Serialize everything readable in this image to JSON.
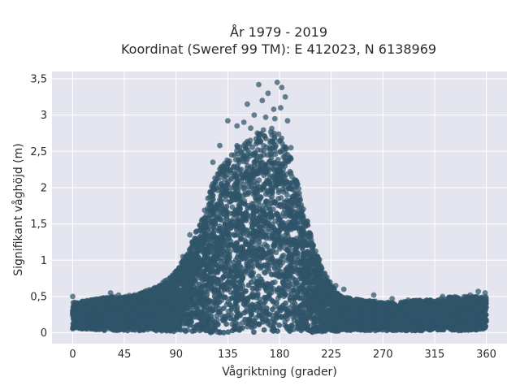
{
  "chart_data": {
    "type": "scatter",
    "title_line1": "År 1979 - 2019",
    "title_line2": "Koordinat (Sweref 99 TM): E 412023, N 6138969",
    "xlabel": "Vågriktning (grader)",
    "ylabel": "Signifikant våghöjd (m)",
    "xlim": [
      -18,
      378
    ],
    "ylim": [
      -0.15,
      3.6
    ],
    "xticks": [
      0,
      45,
      90,
      135,
      180,
      225,
      270,
      315,
      360
    ],
    "xtick_labels": [
      "0",
      "45",
      "90",
      "135",
      "180",
      "225",
      "270",
      "315",
      "360"
    ],
    "yticks": [
      0,
      0.5,
      1,
      1.5,
      2,
      2.5,
      3,
      3.5
    ],
    "ytick_labels": [
      "0",
      "0,5",
      "1",
      "1,5",
      "2",
      "2,5",
      "3",
      "3,5"
    ],
    "grid": true,
    "colors": {
      "plot_background": "#e5e5ef",
      "grid": "#ffffff",
      "marker": "#2f5468"
    },
    "envelope_note_free": true,
    "envelope": {
      "x": [
        0,
        15,
        30,
        45,
        60,
        75,
        90,
        100,
        110,
        120,
        130,
        140,
        150,
        160,
        170,
        180,
        190,
        200,
        210,
        220,
        230,
        240,
        255,
        270,
        285,
        300,
        315,
        330,
        345,
        360
      ],
      "ymax": [
        0.42,
        0.45,
        0.5,
        0.5,
        0.55,
        0.65,
        0.85,
        1.1,
        1.5,
        2.0,
        2.35,
        2.55,
        2.65,
        2.75,
        2.85,
        2.75,
        2.4,
        1.8,
        1.2,
        0.8,
        0.55,
        0.48,
        0.45,
        0.42,
        0.42,
        0.45,
        0.45,
        0.5,
        0.5,
        0.5
      ],
      "ymin": [
        0.05,
        0.05,
        0.03,
        0.03,
        0.03,
        0.02,
        0.02,
        0.02,
        0.0,
        0.0,
        0.0,
        0.0,
        0.0,
        0.0,
        0.0,
        0.0,
        0.0,
        0.0,
        0.0,
        0.02,
        0.02,
        0.03,
        0.03,
        0.03,
        0.03,
        0.03,
        0.03,
        0.03,
        0.03,
        0.05
      ]
    },
    "outliers": [
      {
        "x": 162,
        "y": 3.42
      },
      {
        "x": 178,
        "y": 3.45
      },
      {
        "x": 182,
        "y": 3.38
      },
      {
        "x": 170,
        "y": 3.3
      },
      {
        "x": 152,
        "y": 3.15
      },
      {
        "x": 165,
        "y": 3.2
      },
      {
        "x": 185,
        "y": 3.25
      },
      {
        "x": 181,
        "y": 3.1
      },
      {
        "x": 175,
        "y": 3.08
      },
      {
        "x": 158,
        "y": 3.0
      },
      {
        "x": 168,
        "y": 2.97
      },
      {
        "x": 135,
        "y": 2.92
      },
      {
        "x": 143,
        "y": 2.85
      },
      {
        "x": 149,
        "y": 2.9
      },
      {
        "x": 187,
        "y": 2.92
      },
      {
        "x": 176,
        "y": 2.95
      },
      {
        "x": 155,
        "y": 2.82
      },
      {
        "x": 190,
        "y": 2.55
      },
      {
        "x": 128,
        "y": 2.58
      },
      {
        "x": 122,
        "y": 2.35
      },
      {
        "x": 102,
        "y": 1.35
      },
      {
        "x": 107,
        "y": 1.3
      },
      {
        "x": 96,
        "y": 1.05
      },
      {
        "x": 98,
        "y": 0.95
      },
      {
        "x": 213,
        "y": 1.05
      },
      {
        "x": 224,
        "y": 0.7
      },
      {
        "x": 229,
        "y": 0.65
      },
      {
        "x": 236,
        "y": 0.6
      },
      {
        "x": 0,
        "y": 0.5
      },
      {
        "x": 33,
        "y": 0.55
      },
      {
        "x": 40,
        "y": 0.52
      },
      {
        "x": 63,
        "y": 0.57
      },
      {
        "x": 84,
        "y": 0.65
      },
      {
        "x": 88,
        "y": 0.72
      },
      {
        "x": 262,
        "y": 0.52
      },
      {
        "x": 278,
        "y": 0.47
      },
      {
        "x": 302,
        "y": 0.42
      },
      {
        "x": 322,
        "y": 0.5
      },
      {
        "x": 346,
        "y": 0.52
      },
      {
        "x": 353,
        "y": 0.57
      },
      {
        "x": 359,
        "y": 0.55
      },
      {
        "x": 356,
        "y": 0.48
      },
      {
        "x": 292,
        "y": 0.45
      },
      {
        "x": 6,
        "y": 0.4
      },
      {
        "x": 20,
        "y": 0.44
      }
    ]
  }
}
